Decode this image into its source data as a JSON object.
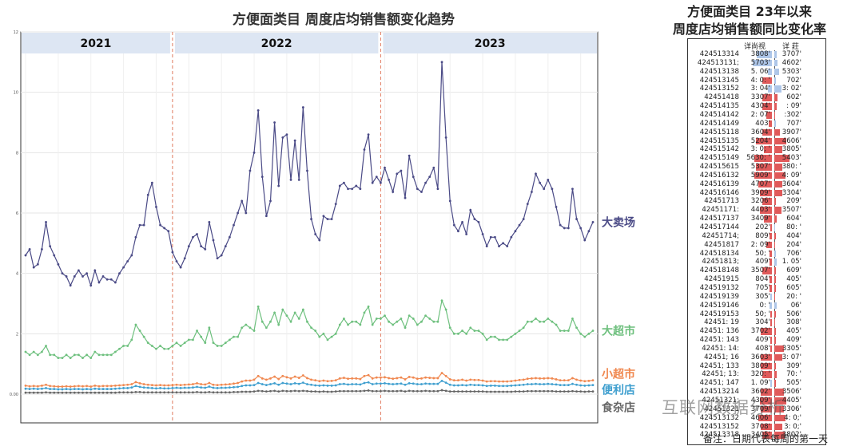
{
  "left_chart": {
    "title": "方便面类目 周度店均销售额变化趋势",
    "year_bands": [
      "2021",
      "2022",
      "2023"
    ],
    "y_tick_labels": [
      "0.00",
      "2",
      "4",
      "6",
      "8",
      "10",
      "12"
    ],
    "line_labels": [
      "大卖场",
      "大超市",
      "小超市",
      "便利店",
      "食杂店"
    ]
  },
  "chart_data": {
    "type": "line",
    "title": "方便面类目 周度店均销售额变化趋势",
    "xlabel": "",
    "ylabel": "",
    "ylim": [
      0,
      12
    ],
    "grid": true,
    "x_count": 140,
    "year_breaks_at_index": [
      36,
      87
    ],
    "series": [
      {
        "name": "大卖场",
        "color": "#4a4a86",
        "values": [
          4.6,
          4.8,
          4.2,
          4.3,
          4.8,
          5.7,
          4.9,
          4.6,
          4.3,
          4.0,
          3.9,
          3.6,
          3.9,
          4.1,
          3.9,
          4.0,
          3.6,
          4.1,
          3.7,
          3.9,
          3.8,
          3.8,
          3.7,
          4.0,
          4.2,
          4.4,
          4.6,
          5.2,
          5.6,
          5.6,
          6.6,
          7.0,
          6.2,
          5.6,
          5.5,
          5.4,
          4.7,
          4.4,
          4.2,
          4.5,
          4.9,
          5.2,
          5.3,
          4.9,
          4.8,
          5.7,
          5.1,
          4.5,
          4.6,
          4.9,
          5.2,
          5.6,
          6.0,
          6.4,
          6.0,
          7.4,
          8.0,
          9.4,
          7.2,
          5.9,
          6.4,
          9.0,
          6.9,
          8.5,
          8.6,
          7.1,
          8.4,
          7.1,
          9.5,
          7.4,
          5.8,
          5.3,
          5.1,
          5.9,
          5.8,
          5.8,
          6.3,
          6.9,
          7.0,
          6.8,
          6.8,
          6.9,
          6.8,
          8.1,
          8.6,
          7.0,
          7.2,
          7.0,
          7.5,
          7.1,
          6.7,
          7.3,
          7.4,
          6.5,
          7.9,
          7.2,
          6.8,
          6.7,
          7.0,
          7.2,
          7.5,
          6.8,
          11.0,
          8.5,
          6.4,
          5.6,
          5.4,
          5.7,
          5.3,
          6.1,
          5.8,
          5.7,
          5.3,
          4.9,
          5.2,
          5.2,
          4.9,
          5.0,
          4.9,
          5.2,
          5.4,
          5.6,
          5.8,
          6.3,
          6.7,
          7.3,
          7.0,
          6.8,
          7.1,
          6.8,
          6.2,
          5.6,
          5.5,
          5.5,
          6.8,
          5.8,
          5.5,
          5.1,
          5.4,
          5.7
        ]
      },
      {
        "name": "大超市",
        "color": "#6ec07e",
        "values": [
          1.4,
          1.3,
          1.4,
          1.3,
          1.4,
          1.6,
          1.3,
          1.3,
          1.2,
          1.2,
          1.3,
          1.2,
          1.3,
          1.3,
          1.2,
          1.3,
          1.2,
          1.4,
          1.3,
          1.3,
          1.3,
          1.3,
          1.4,
          1.5,
          1.6,
          1.6,
          1.8,
          2.3,
          2.1,
          1.9,
          1.7,
          1.6,
          1.5,
          1.6,
          1.5,
          1.5,
          1.6,
          1.7,
          1.6,
          1.7,
          1.8,
          1.8,
          2.1,
          1.9,
          1.7,
          2.2,
          1.7,
          1.6,
          1.6,
          1.7,
          1.8,
          1.9,
          1.9,
          2.2,
          2.3,
          2.2,
          2.1,
          2.9,
          2.4,
          2.2,
          2.4,
          2.7,
          2.3,
          2.8,
          2.6,
          2.4,
          2.7,
          2.5,
          2.8,
          2.4,
          2.2,
          2.1,
          1.9,
          2.0,
          1.8,
          1.9,
          2.0,
          2.3,
          2.5,
          2.3,
          2.4,
          2.4,
          2.3,
          2.7,
          2.9,
          2.3,
          2.5,
          2.5,
          2.6,
          2.4,
          2.3,
          2.4,
          2.5,
          2.2,
          2.6,
          2.5,
          2.3,
          2.4,
          2.6,
          2.5,
          2.4,
          2.4,
          3.1,
          2.8,
          2.2,
          2.0,
          2.0,
          2.1,
          2.0,
          2.2,
          2.1,
          2.1,
          2.0,
          1.8,
          1.9,
          1.9,
          1.8,
          1.8,
          1.8,
          1.9,
          2.0,
          2.1,
          2.2,
          2.4,
          2.4,
          2.5,
          2.4,
          2.4,
          2.5,
          2.4,
          2.3,
          2.1,
          2.1,
          2.1,
          2.5,
          2.2,
          2.0,
          1.9,
          2.0,
          2.1
        ]
      },
      {
        "name": "小超市",
        "color": "#f08850",
        "values": [
          0.28,
          0.26,
          0.27,
          0.26,
          0.28,
          0.31,
          0.27,
          0.26,
          0.25,
          0.25,
          0.26,
          0.25,
          0.26,
          0.27,
          0.26,
          0.27,
          0.25,
          0.28,
          0.26,
          0.27,
          0.27,
          0.27,
          0.28,
          0.29,
          0.3,
          0.31,
          0.33,
          0.4,
          0.36,
          0.33,
          0.31,
          0.3,
          0.29,
          0.3,
          0.29,
          0.29,
          0.3,
          0.31,
          0.3,
          0.31,
          0.32,
          0.33,
          0.36,
          0.33,
          0.32,
          0.37,
          0.31,
          0.3,
          0.31,
          0.32,
          0.33,
          0.35,
          0.37,
          0.42,
          0.45,
          0.45,
          0.48,
          0.6,
          0.52,
          0.48,
          0.52,
          0.58,
          0.5,
          0.6,
          0.56,
          0.52,
          0.58,
          0.54,
          0.62,
          0.53,
          0.48,
          0.46,
          0.43,
          0.45,
          0.43,
          0.44,
          0.46,
          0.52,
          0.54,
          0.51,
          0.52,
          0.52,
          0.5,
          0.6,
          0.63,
          0.52,
          0.55,
          0.55,
          0.56,
          0.53,
          0.51,
          0.53,
          0.55,
          0.49,
          0.57,
          0.55,
          0.51,
          0.52,
          0.55,
          0.54,
          0.53,
          0.53,
          0.7,
          0.6,
          0.49,
          0.46,
          0.46,
          0.48,
          0.45,
          0.48,
          0.47,
          0.47,
          0.45,
          0.42,
          0.43,
          0.43,
          0.42,
          0.42,
          0.42,
          0.43,
          0.45,
          0.47,
          0.48,
          0.51,
          0.52,
          0.53,
          0.52,
          0.52,
          0.53,
          0.52,
          0.49,
          0.46,
          0.46,
          0.46,
          0.53,
          0.48,
          0.45,
          0.43,
          0.44,
          0.46
        ]
      },
      {
        "name": "便利店",
        "color": "#3f9fcf",
        "values": [
          0.18,
          0.17,
          0.18,
          0.17,
          0.18,
          0.2,
          0.17,
          0.17,
          0.16,
          0.16,
          0.17,
          0.16,
          0.17,
          0.17,
          0.16,
          0.17,
          0.16,
          0.18,
          0.17,
          0.17,
          0.17,
          0.17,
          0.18,
          0.19,
          0.2,
          0.2,
          0.22,
          0.27,
          0.24,
          0.22,
          0.21,
          0.2,
          0.19,
          0.2,
          0.19,
          0.19,
          0.2,
          0.21,
          0.2,
          0.21,
          0.21,
          0.22,
          0.24,
          0.22,
          0.21,
          0.25,
          0.21,
          0.2,
          0.21,
          0.21,
          0.22,
          0.23,
          0.24,
          0.27,
          0.29,
          0.29,
          0.3,
          0.37,
          0.33,
          0.3,
          0.33,
          0.36,
          0.31,
          0.37,
          0.35,
          0.33,
          0.36,
          0.34,
          0.38,
          0.33,
          0.31,
          0.29,
          0.28,
          0.29,
          0.28,
          0.28,
          0.29,
          0.33,
          0.34,
          0.32,
          0.33,
          0.33,
          0.32,
          0.37,
          0.39,
          0.33,
          0.35,
          0.35,
          0.36,
          0.34,
          0.33,
          0.34,
          0.35,
          0.31,
          0.36,
          0.35,
          0.33,
          0.33,
          0.35,
          0.34,
          0.34,
          0.34,
          0.44,
          0.38,
          0.31,
          0.29,
          0.29,
          0.3,
          0.29,
          0.31,
          0.3,
          0.3,
          0.29,
          0.27,
          0.28,
          0.28,
          0.27,
          0.27,
          0.27,
          0.28,
          0.29,
          0.3,
          0.31,
          0.33,
          0.33,
          0.34,
          0.33,
          0.33,
          0.34,
          0.33,
          0.32,
          0.3,
          0.3,
          0.3,
          0.34,
          0.31,
          0.29,
          0.28,
          0.29,
          0.3
        ]
      },
      {
        "name": "食杂店",
        "color": "#666666",
        "values": [
          0.05,
          0.05,
          0.05,
          0.05,
          0.05,
          0.06,
          0.05,
          0.05,
          0.05,
          0.05,
          0.05,
          0.05,
          0.05,
          0.05,
          0.05,
          0.05,
          0.05,
          0.05,
          0.05,
          0.05,
          0.05,
          0.05,
          0.05,
          0.06,
          0.06,
          0.06,
          0.06,
          0.07,
          0.07,
          0.06,
          0.06,
          0.06,
          0.06,
          0.06,
          0.06,
          0.06,
          0.06,
          0.06,
          0.06,
          0.06,
          0.06,
          0.06,
          0.07,
          0.06,
          0.06,
          0.07,
          0.06,
          0.06,
          0.06,
          0.06,
          0.06,
          0.07,
          0.07,
          0.08,
          0.08,
          0.08,
          0.09,
          0.11,
          0.1,
          0.09,
          0.1,
          0.11,
          0.09,
          0.11,
          0.1,
          0.1,
          0.11,
          0.1,
          0.11,
          0.1,
          0.09,
          0.09,
          0.08,
          0.09,
          0.08,
          0.08,
          0.09,
          0.1,
          0.1,
          0.1,
          0.1,
          0.1,
          0.1,
          0.11,
          0.12,
          0.1,
          0.1,
          0.1,
          0.11,
          0.1,
          0.1,
          0.1,
          0.11,
          0.09,
          0.11,
          0.1,
          0.1,
          0.1,
          0.11,
          0.1,
          0.1,
          0.1,
          0.13,
          0.11,
          0.09,
          0.09,
          0.09,
          0.09,
          0.09,
          0.09,
          0.09,
          0.09,
          0.09,
          0.08,
          0.08,
          0.08,
          0.08,
          0.08,
          0.08,
          0.08,
          0.09,
          0.09,
          0.09,
          0.1,
          0.1,
          0.1,
          0.1,
          0.1,
          0.1,
          0.1,
          0.09,
          0.09,
          0.09,
          0.09,
          0.1,
          0.09,
          0.09,
          0.08,
          0.09,
          0.09
        ]
      }
    ]
  },
  "right_table": {
    "title_line1": "方便面类目 23年以来",
    "title_line2": "周度店均销售额同比变化率",
    "col1_header": "详尚视",
    "col2_header": "详    莊",
    "rows": [
      {
        "code": "424513314",
        "c1": "3808'",
        "c2": "3707'",
        "v1": 0.55,
        "v2": 0.1
      },
      {
        "code": "424513131;",
        "c1": "5703'",
        "c2": "4602'",
        "v1": 0.7,
        "v2": 0.12
      },
      {
        "code": "424513138",
        "c1": "5. 06'",
        "c2": "5303'",
        "v1": 0.15,
        "v2": 0.18
      },
      {
        "code": "424513145",
        "c1": "4: 0: '",
        "c2": "702'",
        "v1": -0.35,
        "v2": 0.05
      },
      {
        "code": "424513152",
        "c1": "3: 04'",
        "c2": "3: 02'",
        "v1": 0.15,
        "v2": 0.25
      },
      {
        "code": "42451418",
        "c1": "3307'",
        "c2": "602'",
        "v1": -0.35,
        "v2": -0.12
      },
      {
        "code": "424514135",
        "c1": "4304'",
        "c2": ": 09'",
        "v1": -0.35,
        "v2": -0.1
      },
      {
        "code": "424514142",
        "c1": "2: 07'",
        "c2": ":302'",
        "v1": -0.2,
        "v2": -0.04
      },
      {
        "code": "424514149",
        "c1": "403'",
        "c2": "707'",
        "v1": -0.12,
        "v2": 0.06
      },
      {
        "code": "424515118",
        "c1": "3604'",
        "c2": "3907'",
        "v1": -0.35,
        "v2": -0.2
      },
      {
        "code": "424515135",
        "c1": "5204'",
        "c2": "4606'",
        "v1": -0.6,
        "v2": -0.45
      },
      {
        "code": "424515142",
        "c1": "3: 0; '",
        "c2": "3805'",
        "v1": -0.3,
        "v2": -0.3
      },
      {
        "code": "424515149",
        "c1": "5630; '",
        "c2": "5403'",
        "v1": -0.65,
        "v2": -0.55
      },
      {
        "code": "424515615",
        "c1": "5307'",
        "c2": "380: '",
        "v1": -0.6,
        "v2": -0.3
      },
      {
        "code": "424516132",
        "c1": "5909'",
        "c2": "4: 09'",
        "v1": -0.65,
        "v2": -0.4
      },
      {
        "code": "424516139",
        "c1": "4707'",
        "c2": "3604'",
        "v1": -0.5,
        "v2": -0.3
      },
      {
        "code": "424516146",
        "c1": "3909'",
        "c2": "3304'",
        "v1": -0.45,
        "v2": -0.28
      },
      {
        "code": "42451713",
        "c1": "3206'",
        "c2": "209'",
        "v1": -0.35,
        "v2": -0.05
      },
      {
        "code": "42451171:",
        "c1": "4403'",
        "c2": "3507'",
        "v1": -0.45,
        "v2": -0.25
      },
      {
        "code": "424517137",
        "c1": "3409'",
        "c2": "604'",
        "v1": -0.3,
        "v2": -0.08
      },
      {
        "code": "424517144",
        "c1": "202'",
        "c2": "80: '",
        "v1": -0.05,
        "v2": 0.02
      },
      {
        "code": "42451714;",
        "c1": "809'",
        "c2": "404'",
        "v1": -0.1,
        "v2": -0.05
      },
      {
        "code": "42451817",
        "c1": "2: 09'",
        "c2": "204'",
        "v1": -0.2,
        "v2": -0.04
      },
      {
        "code": "424518134",
        "c1": "50; '",
        "c2": "706'",
        "v1": -0.1,
        "v2": 0.06
      },
      {
        "code": "42451813;",
        "c1": "409'",
        "c2": "1. 05'",
        "v1": -0.08,
        "v2": 0.08
      },
      {
        "code": "424518148",
        "c1": "3507'",
        "c2": "609'",
        "v1": -0.35,
        "v2": -0.07
      },
      {
        "code": "42451915",
        "c1": "804'",
        "c2": "405'",
        "v1": -0.1,
        "v2": -0.05
      },
      {
        "code": "424519132",
        "c1": "705'",
        "c2": "605'",
        "v1": -0.1,
        "v2": -0.06
      },
      {
        "code": "424519139",
        "c1": "305'",
        "c2": "20: '",
        "v1": 0.05,
        "v2": -0.02
      },
      {
        "code": "424519146",
        "c1": "0: '",
        "c2": "06'",
        "v1": 0.08,
        "v2": 0.08
      },
      {
        "code": "424519153",
        "c1": "50; '",
        "c2": "506'",
        "v1": -0.06,
        "v2": -0.05
      },
      {
        "code": "42451: 19",
        "c1": "304'",
        "c2": "308'",
        "v1": -0.05,
        "v2": -0.04
      },
      {
        "code": "42451: 136",
        "c1": "3702'",
        "c2": "405'",
        "v1": -0.4,
        "v2": -0.05
      },
      {
        "code": "42451: 143",
        "c1": "409'",
        "c2": "409'",
        "v1": -0.06,
        "v2": -0.06
      },
      {
        "code": "42451: 14:",
        "c1": "408'",
        "c2": "3305'",
        "v1": -0.06,
        "v2": -0.35
      },
      {
        "code": "42451; 16",
        "c1": "3603'",
        "c2": "3: 07'",
        "v1": -0.4,
        "v2": -0.3
      },
      {
        "code": "42451; 133",
        "c1": "3809'",
        "c2": "309'",
        "v1": -0.4,
        "v2": -0.05
      },
      {
        "code": "42451; 13:",
        "c1": "320: '",
        "c2": "70: '",
        "v1": -0.35,
        "v2": -0.08
      },
      {
        "code": "42451; 147",
        "c1": "1. 09'",
        "c2": "505'",
        "v1": 0.06,
        "v2": -0.06
      },
      {
        "code": "424513214",
        "c1": "3602'",
        "c2": "3506'",
        "v1": -0.4,
        "v2": -0.35
      },
      {
        "code": "42451321;",
        "c1": "4309'",
        "c2": "4405'",
        "v1": -0.45,
        "v2": -0.45
      },
      {
        "code": "42451321",
        "c1": "3709'",
        "c2": "3306'",
        "v1": -0.4,
        "v2": -0.35
      },
      {
        "code": "424513132",
        "c1": "4606'",
        "c2": "4: 0;'",
        "v1": -0.5,
        "v2": -0.4
      },
      {
        "code": "424513152",
        "c1": "3708'",
        "c2": "3: 0;'",
        "v1": -0.4,
        "v2": -0.3
      },
      {
        "code": "424513318",
        "c1": "3405'",
        "c2": "3802'",
        "v1": -0.35,
        "v2": -0.38
      }
    ]
  },
  "footnote": "备注：日期代表每周的第一天",
  "watermark": "互联网数据分析",
  "colors": {
    "pos_bar": "#aec6e8",
    "neg_bar": "#e05a5a",
    "year_band": "#dde6f3",
    "divider": "#e07a5f"
  }
}
